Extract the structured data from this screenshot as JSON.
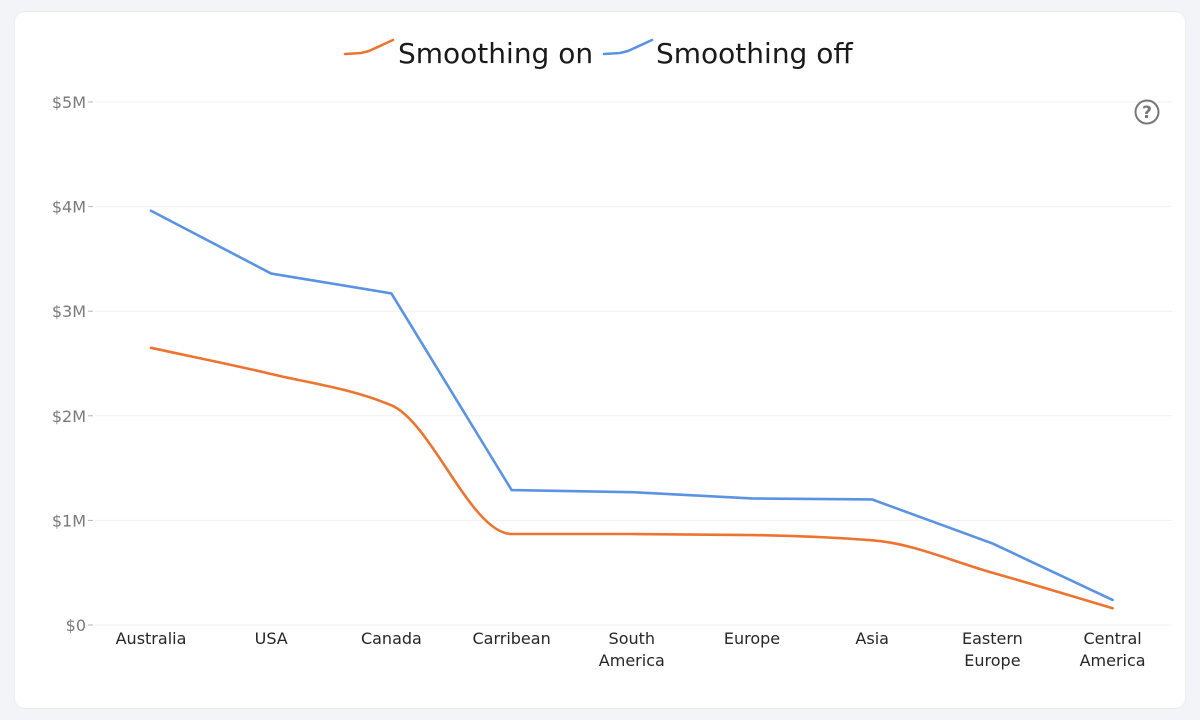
{
  "chart_data": {
    "type": "line",
    "title": "",
    "xlabel": "",
    "ylabel": "",
    "categories": [
      [
        "Australia"
      ],
      [
        "USA"
      ],
      [
        "Canada"
      ],
      [
        "Carribean"
      ],
      [
        "South",
        "America"
      ],
      [
        "Europe"
      ],
      [
        "Asia"
      ],
      [
        "Eastern",
        "Europe"
      ],
      [
        "Central",
        "America"
      ]
    ],
    "ylim": [
      0,
      5000000
    ],
    "yticks": [
      0,
      1000000,
      2000000,
      3000000,
      4000000,
      5000000
    ],
    "ytick_labels": [
      "$0",
      "$1M",
      "$2M",
      "$3M",
      "$4M",
      "$5M"
    ],
    "grid": true,
    "legend_position": "top-center",
    "series": [
      {
        "name": "Smoothing on",
        "color": "#ed7430",
        "smooth": true,
        "values": [
          2650000,
          2400000,
          2100000,
          870000,
          870000,
          860000,
          810000,
          500000,
          160000
        ]
      },
      {
        "name": "Smoothing off",
        "color": "#5b93e3",
        "smooth": false,
        "values": [
          3960000,
          3360000,
          3170000,
          1290000,
          1270000,
          1210000,
          1200000,
          780000,
          240000
        ]
      }
    ]
  },
  "help": {
    "icon": "question-circle-icon",
    "glyph": "?"
  }
}
